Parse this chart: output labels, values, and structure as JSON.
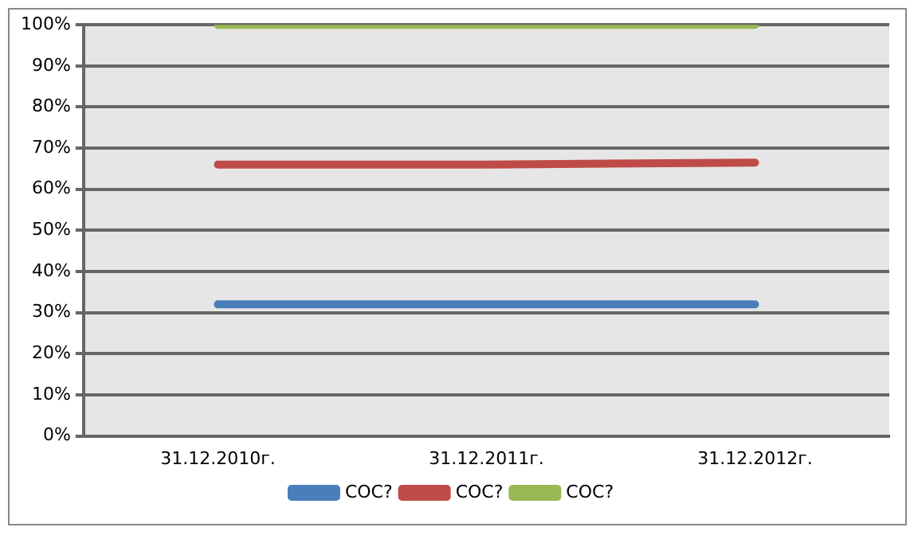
{
  "chart_data": {
    "type": "line",
    "categories": [
      "31.12.2010г.",
      "31.12.2011г.",
      "31.12.2012г."
    ],
    "series": [
      {
        "name": "COC?",
        "color": "#4a7ebb",
        "values": [
          32,
          32,
          32
        ]
      },
      {
        "name": "COC?",
        "color": "#be4b48",
        "values": [
          66,
          66,
          66.5
        ]
      },
      {
        "name": "COC?",
        "color": "#98b954",
        "values": [
          100,
          100,
          100
        ]
      }
    ],
    "ylim": [
      0,
      100
    ],
    "yticks": [
      {
        "value": 0,
        "label": "0%"
      },
      {
        "value": 10,
        "label": "10%"
      },
      {
        "value": 20,
        "label": "20%"
      },
      {
        "value": 30,
        "label": "30%"
      },
      {
        "value": 40,
        "label": "40%"
      },
      {
        "value": 50,
        "label": "50%"
      },
      {
        "value": 60,
        "label": "60%"
      },
      {
        "value": 70,
        "label": "70%"
      },
      {
        "value": 80,
        "label": "80%"
      },
      {
        "value": 90,
        "label": "90%"
      },
      {
        "value": 100,
        "label": "100%"
      }
    ],
    "grid": "y",
    "legend": "bottom",
    "marker": "none",
    "line_style": "solid"
  }
}
